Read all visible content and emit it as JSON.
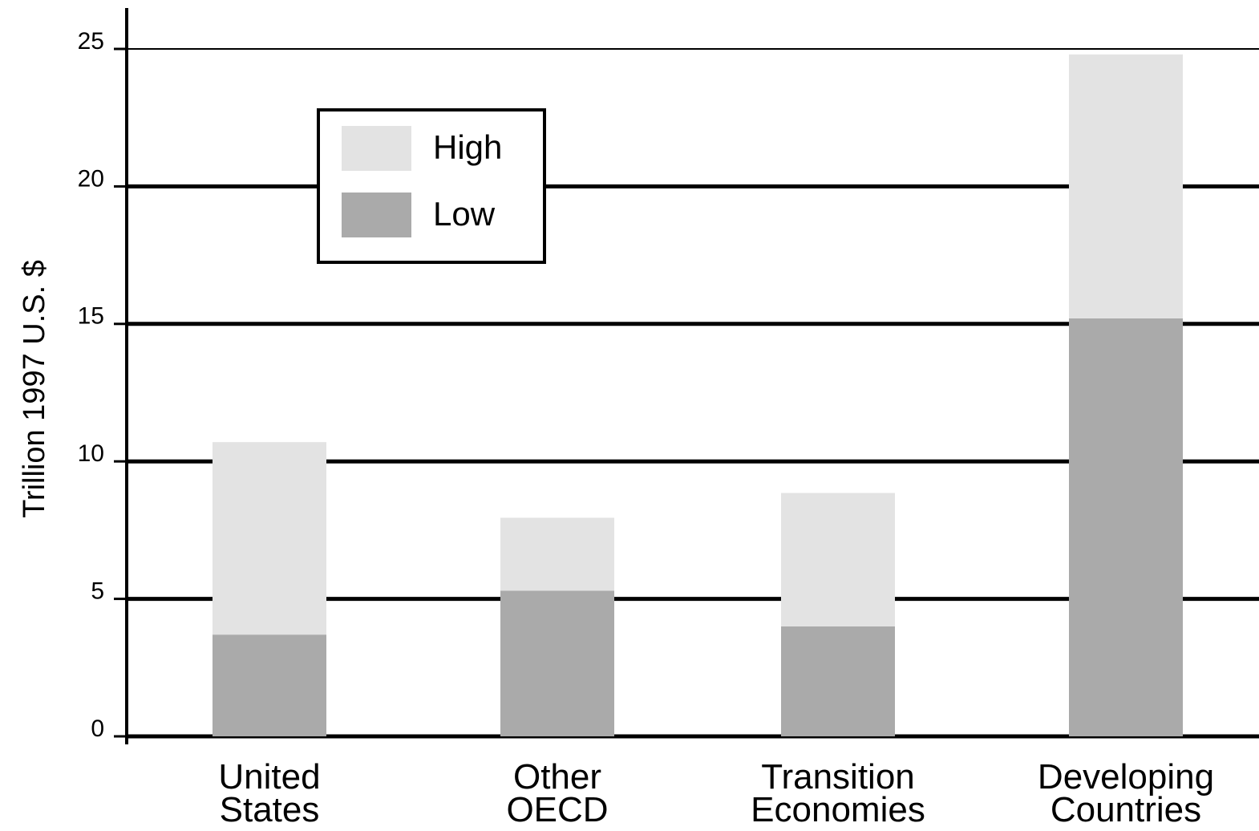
{
  "chart_data": {
    "type": "stacked-bar",
    "ylabel": "Trillion 1997 U.S. $",
    "categories": [
      "United States",
      "Other OECD",
      "Transition Economies",
      "Developing Countries"
    ],
    "series": [
      {
        "name": "Low",
        "color": "#aaaaaa",
        "values": [
          3.7,
          5.3,
          4.0,
          15.2
        ]
      },
      {
        "name": "High",
        "color": "#e3e3e3",
        "values": [
          7.0,
          2.65,
          4.85,
          9.6
        ]
      }
    ],
    "ylim": [
      0,
      25
    ],
    "yticks": [
      0,
      5,
      10,
      15,
      20,
      25
    ],
    "grid": true,
    "legend": "upper left"
  }
}
